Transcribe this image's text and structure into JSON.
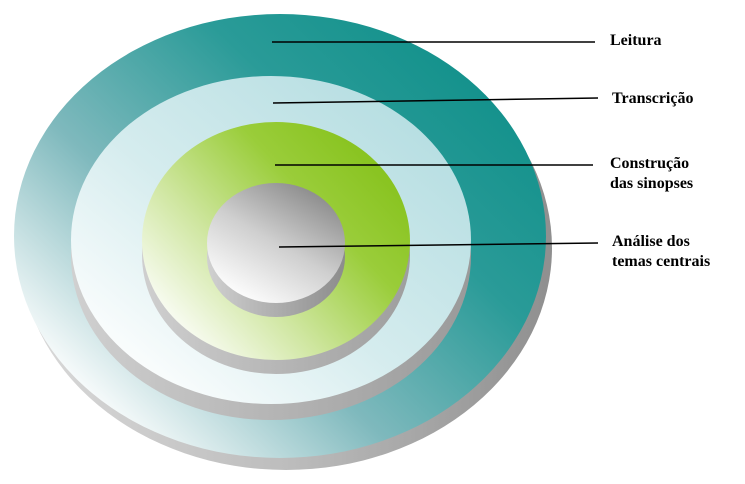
{
  "diagram": {
    "layers": [
      {
        "label": "Leitura",
        "color": "#1b9a94"
      },
      {
        "label": "Transcrição",
        "color": "#bfe0e3"
      },
      {
        "label": "Construção\ndas sinopses",
        "color": "#8cc63f"
      },
      {
        "label": "Análise dos\ntemas centrais",
        "color": "#9a9a9a"
      }
    ]
  }
}
